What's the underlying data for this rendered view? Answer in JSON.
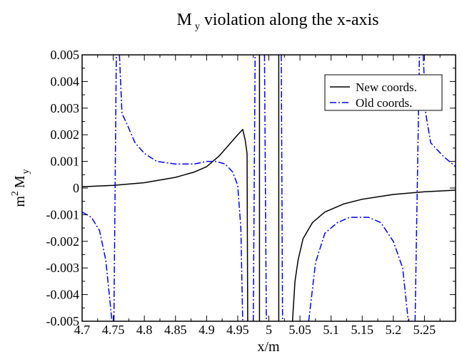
{
  "chart_data": {
    "type": "line",
    "title_main": "M",
    "title_sub": "y",
    "title_rest": " violation along the x-axis",
    "xlabel": "x/m",
    "ylabel_base": "m",
    "ylabel_sup": "2",
    "ylabel_var": "M",
    "ylabel_sub": "y",
    "xlim": [
      4.7,
      5.3
    ],
    "ylim": [
      -0.005,
      0.005
    ],
    "x_ticks": [
      4.7,
      4.75,
      4.8,
      4.85,
      4.9,
      4.95,
      5,
      5.05,
      5.1,
      5.15,
      5.2,
      5.25
    ],
    "x_tick_labels": [
      "4.7",
      "4.75",
      "4.8",
      "4.85",
      "4.9",
      "4.95",
      "5",
      "5.05",
      "5.1",
      "5.15",
      "5.2",
      "5.25"
    ],
    "y_ticks": [
      -0.005,
      -0.004,
      -0.003,
      -0.002,
      -0.001,
      0,
      0.001,
      0.002,
      0.003,
      0.004,
      0.005
    ],
    "y_tick_labels": [
      "-0.005",
      "-0.004",
      "-0.003",
      "-0.002",
      "-0.001",
      "0",
      "0.001",
      "0.002",
      "0.003",
      "0.004",
      "0.005"
    ],
    "grid": false,
    "legend_position": "top-right",
    "series": [
      {
        "name": "New coords.",
        "color": "#000000",
        "dash": "solid",
        "segments": [
          [
            [
              4.7,
              5e-05
            ],
            [
              4.75,
              0.0001
            ],
            [
              4.8,
              0.0002
            ],
            [
              4.85,
              0.0004
            ],
            [
              4.88,
              0.0006
            ],
            [
              4.9,
              0.0008
            ],
            [
              4.92,
              0.0012
            ],
            [
              4.935,
              0.0016
            ],
            [
              4.95,
              0.002
            ],
            [
              4.958,
              0.0022
            ],
            [
              4.962,
              0.0018
            ],
            [
              4.965,
              0.0013
            ],
            [
              4.966,
              -0.005
            ]
          ],
          [
            [
              4.985,
              0.005
            ],
            [
              4.985,
              -0.005
            ]
          ],
          [
            [
              5.016,
              0.005
            ],
            [
              5.016,
              -0.005
            ]
          ],
          [
            [
              5.038,
              -0.005
            ],
            [
              5.042,
              -0.0035
            ],
            [
              5.047,
              -0.0027
            ],
            [
              5.055,
              -0.0019
            ],
            [
              5.07,
              -0.0013
            ],
            [
              5.09,
              -0.0009
            ],
            [
              5.12,
              -0.0006
            ],
            [
              5.15,
              -0.00042
            ],
            [
              5.2,
              -0.00024
            ],
            [
              5.25,
              -0.00014
            ],
            [
              5.3,
              -8e-05
            ]
          ]
        ]
      },
      {
        "name": "Old coords.",
        "color": "#0000ee",
        "dash": "dashdot",
        "segments": [
          [
            [
              4.7,
              -0.0009
            ],
            [
              4.715,
              -0.0011
            ],
            [
              4.728,
              -0.0016
            ],
            [
              4.738,
              -0.0027
            ],
            [
              4.745,
              -0.0043
            ],
            [
              4.748,
              -0.005
            ]
          ],
          [
            [
              4.751,
              -0.005
            ],
            [
              4.755,
              0.005
            ]
          ],
          [
            [
              4.76,
              0.005
            ],
            [
              4.764,
              0.0028
            ],
            [
              4.772,
              0.0024
            ],
            [
              4.785,
              0.0017
            ],
            [
              4.8,
              0.0013
            ],
            [
              4.82,
              0.001
            ],
            [
              4.85,
              0.0009
            ],
            [
              4.88,
              0.0009
            ],
            [
              4.9,
              0.001
            ],
            [
              4.915,
              0.001
            ],
            [
              4.93,
              0.0009
            ],
            [
              4.942,
              0.0006
            ],
            [
              4.95,
              0.0001
            ],
            [
              4.955,
              -0.0015
            ],
            [
              4.958,
              -0.005
            ]
          ],
          [
            [
              4.975,
              -0.005
            ],
            [
              4.978,
              0.005
            ]
          ],
          [
            [
              4.993,
              0.005
            ],
            [
              4.996,
              -0.005
            ]
          ],
          [
            [
              5.02,
              0.005
            ],
            [
              5.022,
              -0.005
            ]
          ],
          [
            [
              5.064,
              -0.005
            ],
            [
              5.075,
              -0.0028
            ],
            [
              5.09,
              -0.0017
            ],
            [
              5.11,
              -0.0013
            ],
            [
              5.13,
              -0.0011
            ],
            [
              5.16,
              -0.0011
            ],
            [
              5.18,
              -0.0013
            ],
            [
              5.2,
              -0.002
            ],
            [
              5.215,
              -0.003
            ],
            [
              5.224,
              -0.005
            ]
          ],
          [
            [
              5.235,
              -0.005
            ],
            [
              5.242,
              0.005
            ]
          ],
          [
            [
              5.248,
              0.005
            ],
            [
              5.252,
              0.0028
            ],
            [
              5.26,
              0.0017
            ],
            [
              5.28,
              0.0012
            ],
            [
              5.3,
              0.0008
            ]
          ]
        ]
      }
    ]
  }
}
